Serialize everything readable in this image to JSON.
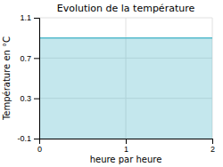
{
  "chart_data": {
    "type": "area",
    "title": "Evolution de la température",
    "x_label": "heure par heure",
    "y_label": "Température en °C",
    "x": [
      0,
      2
    ],
    "values": [
      0.9,
      0.9
    ],
    "color": "#55bbcc",
    "xlim": [
      0,
      2
    ],
    "ylim": [
      -0.1,
      1.1
    ],
    "xticks": [
      0,
      1,
      2
    ],
    "yticks": [
      -0.1,
      0.3,
      0.7,
      1.1
    ],
    "grid": true
  }
}
